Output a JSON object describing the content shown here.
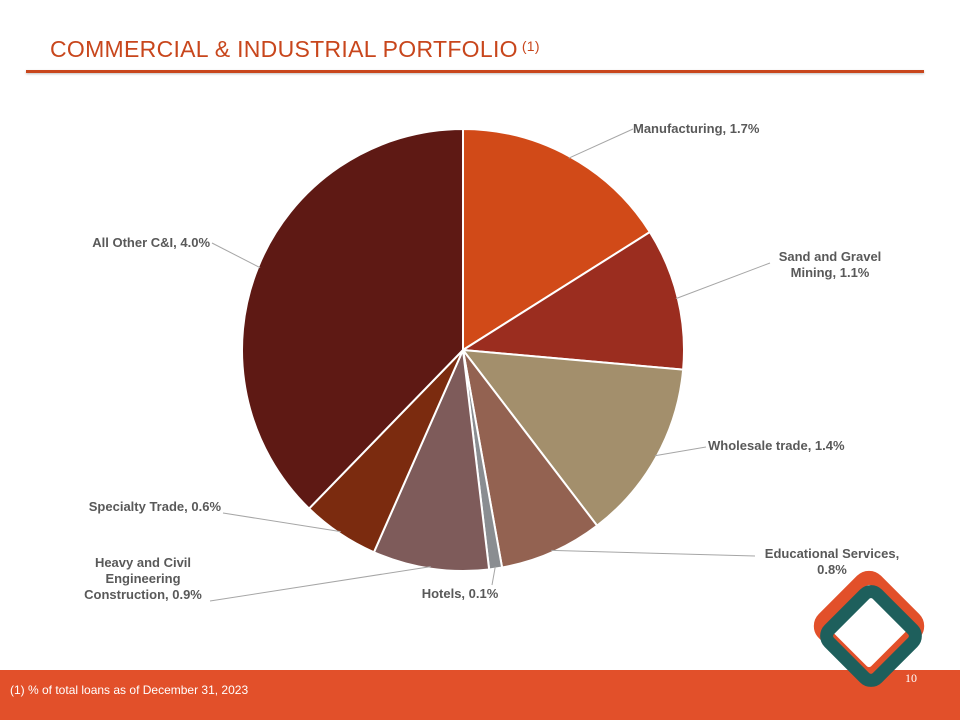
{
  "header": {
    "title": "COMMERCIAL & INDUSTRIAL  PORTFOLIO",
    "title_note": "(1)"
  },
  "chart_data": {
    "type": "pie",
    "title": "",
    "slices": [
      {
        "label": "Manufacturing, 1.7%",
        "category": "Manufacturing",
        "value": 1.7,
        "color": "#d14a18"
      },
      {
        "label": "Sand and Gravel Mining, 1.1%",
        "category": "Sand and Gravel Mining",
        "value": 1.1,
        "color": "#9b2d1f"
      },
      {
        "label": "Wholesale trade, 1.4%",
        "category": "Wholesale trade",
        "value": 1.4,
        "color": "#a38f6c"
      },
      {
        "label": "Educational Services, 0.8%",
        "category": "Educational Services",
        "value": 0.8,
        "color": "#936251"
      },
      {
        "label": "Hotels, 0.1%",
        "category": "Hotels",
        "value": 0.1,
        "color": "#8a8d91"
      },
      {
        "label": "Heavy and Civil Engineering Construction, 0.9%",
        "category": "Heavy and Civil Engineering Construction",
        "value": 0.9,
        "color": "#7e5b5a"
      },
      {
        "label": "Specialty Trade, 0.6%",
        "category": "Specialty Trade",
        "value": 0.6,
        "color": "#7b2b0f"
      },
      {
        "label": "All Other C&I, 4.0%",
        "category": "All Other C&I",
        "value": 4.0,
        "color": "#5e1914"
      }
    ],
    "label_color": "#595959",
    "leader_color": "#a6a6a6"
  },
  "footer": {
    "footnote": "(1)  % of total loans as of December 31, 2023",
    "page_number": "10"
  },
  "logo": {
    "outer_color": "#e2502a",
    "inner_color": "#1e5f5c"
  }
}
